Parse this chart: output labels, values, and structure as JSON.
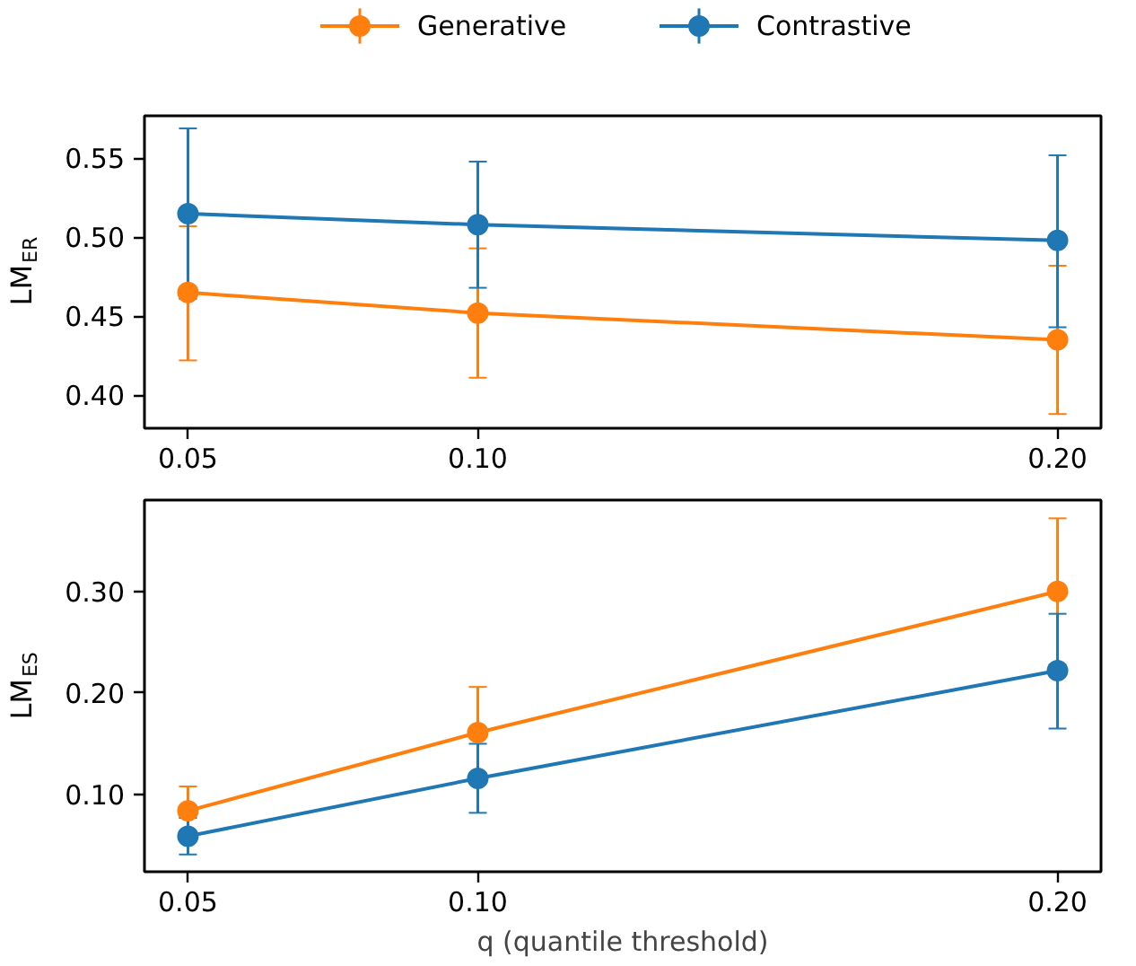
{
  "chart_data": [
    {
      "type": "line",
      "ylabel": "LM$_{ER}$",
      "x": [
        0.05,
        0.1,
        0.2
      ],
      "xlim": [
        0.0425,
        0.2075
      ],
      "xticks": [
        {
          "value": 0.05,
          "label": "0.05"
        },
        {
          "value": 0.1,
          "label": "0.10"
        },
        {
          "value": 0.2,
          "label": "0.20"
        }
      ],
      "ylim": [
        0.379,
        0.577
      ],
      "yticks": [
        {
          "value": 0.4,
          "label": "0.40"
        },
        {
          "value": 0.45,
          "label": "0.45"
        },
        {
          "value": 0.5,
          "label": "0.50"
        },
        {
          "value": 0.55,
          "label": "0.55"
        }
      ],
      "marker": "circle",
      "legend": "top",
      "grid": false,
      "series": [
        {
          "name": "Generative",
          "color": "#ff7f0e",
          "values": [
            0.465,
            0.452,
            0.435
          ],
          "errors": [
            [
              0.422,
              0.507
            ],
            [
              0.411,
              0.493
            ],
            [
              0.388,
              0.482
            ]
          ]
        },
        {
          "name": "Contrastive",
          "color": "#1f77b4",
          "values": [
            0.515,
            0.508,
            0.498
          ],
          "errors": [
            [
              0.461,
              0.569
            ],
            [
              0.468,
              0.548
            ],
            [
              0.443,
              0.552
            ]
          ]
        }
      ]
    },
    {
      "type": "line",
      "ylabel": "LM$_{ES}$",
      "xlabel": "q (quantile threshold)",
      "x": [
        0.05,
        0.1,
        0.2
      ],
      "xlim": [
        0.0425,
        0.2075
      ],
      "xticks": [
        {
          "value": 0.05,
          "label": "0.05"
        },
        {
          "value": 0.1,
          "label": "0.10"
        },
        {
          "value": 0.2,
          "label": "0.20"
        }
      ],
      "ylim": [
        0.024,
        0.39
      ],
      "yticks": [
        {
          "value": 0.1,
          "label": "0.10"
        },
        {
          "value": 0.2,
          "label": "0.20"
        },
        {
          "value": 0.3,
          "label": "0.30"
        }
      ],
      "marker": "circle",
      "grid": false,
      "series": [
        {
          "color": "#ff7f0e",
          "values": [
            0.084,
            0.161,
            0.3
          ],
          "errors": [
            [
              0.084,
              0.108
            ],
            [
              0.161,
              0.206
            ],
            [
              0.228,
              0.372
            ]
          ]
        },
        {
          "color": "#1f77b4",
          "values": [
            0.059,
            0.116,
            0.222
          ],
          "errors": [
            [
              0.041,
              0.077
            ],
            [
              0.082,
              0.15
            ],
            [
              0.165,
              0.278
            ]
          ]
        }
      ]
    }
  ]
}
